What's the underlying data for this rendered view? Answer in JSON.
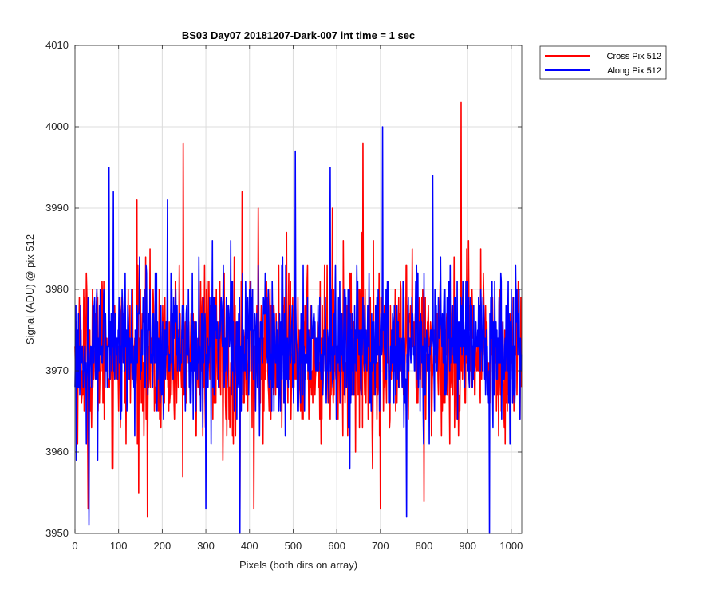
{
  "chart_data": {
    "type": "line",
    "title": "BS03 Day07 20181207-Dark-007 int time = 1 sec",
    "xlabel": "Pixels (both dirs on array)",
    "ylabel": "Signal (ADU) @ pix 512",
    "xlim": [
      0,
      1024
    ],
    "ylim": [
      3950,
      4010
    ],
    "xticks": [
      0,
      100,
      200,
      300,
      400,
      500,
      600,
      700,
      800,
      900,
      1000
    ],
    "yticks": [
      3950,
      3960,
      3970,
      3980,
      3990,
      4000,
      4010
    ],
    "grid": true,
    "legend_position": "outside-top-right",
    "series": [
      {
        "name": "Cross Pix 512",
        "color": "#ff0000",
        "noise": {
          "mean": 3972,
          "std": 5,
          "n": 1024
        },
        "peaks": [
          [
            248,
            3998
          ],
          [
            383,
            3992
          ],
          [
            660,
            3998
          ],
          [
            885,
            4003
          ],
          [
            142,
            3991
          ],
          [
            420,
            3990
          ],
          [
            590,
            3990
          ]
        ],
        "dips": [
          [
            30,
            3953
          ],
          [
            166,
            3952
          ],
          [
            378,
            3953
          ],
          [
            700,
            3953
          ],
          [
            800,
            3954
          ],
          [
            410,
            3953
          ]
        ]
      },
      {
        "name": "Along Pix 512",
        "color": "#0000ff",
        "noise": {
          "mean": 3973,
          "std": 4.5,
          "n": 1024
        },
        "peaks": [
          [
            78,
            3995
          ],
          [
            505,
            3997
          ],
          [
            585,
            3995
          ],
          [
            705,
            4000
          ],
          [
            820,
            3994
          ],
          [
            88,
            3992
          ],
          [
            212,
            3991
          ]
        ],
        "dips": [
          [
            32,
            3951
          ],
          [
            378,
            3950
          ],
          [
            950,
            3950
          ],
          [
            760,
            3952
          ],
          [
            300,
            3953
          ]
        ]
      }
    ]
  }
}
